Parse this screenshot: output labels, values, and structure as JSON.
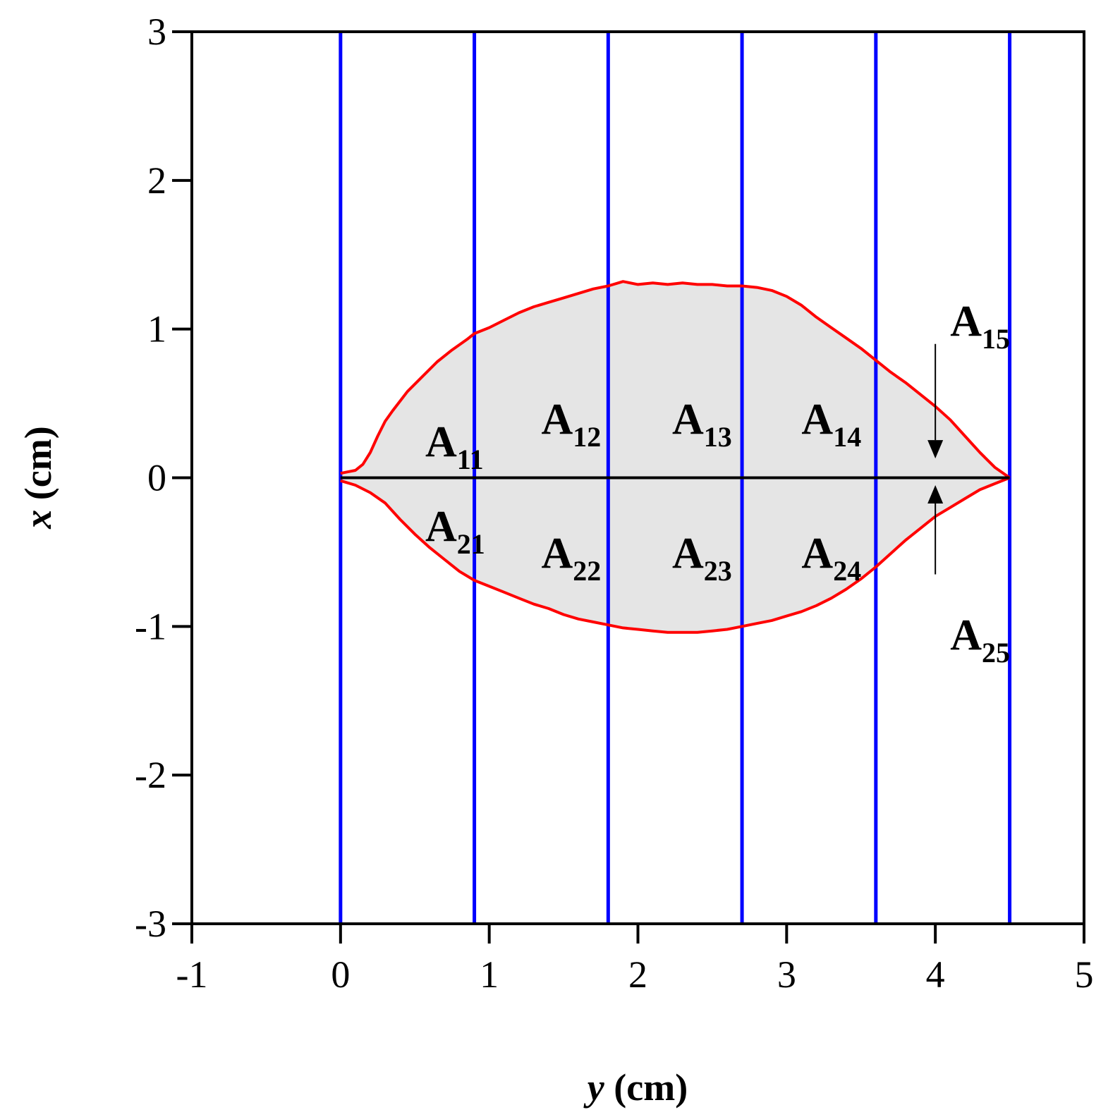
{
  "chart_data": {
    "type": "area",
    "title": "",
    "xlabel": {
      "var": "y",
      "unit": " (cm)"
    },
    "ylabel": {
      "var": "x",
      "unit": " (cm)"
    },
    "xlim": [
      -1,
      5
    ],
    "ylim": [
      -3,
      3
    ],
    "xticks": [
      "-1",
      "0",
      "1",
      "2",
      "3",
      "4",
      "5"
    ],
    "yticks": [
      "-3",
      "-2",
      "-1",
      "0",
      "1",
      "2",
      "3"
    ],
    "grid": false,
    "colors": {
      "boundary": "#ff0000",
      "fill": "#e5e5e5",
      "dividers": "#0000ff",
      "axis": "#000000"
    },
    "divider_lines_x": [
      0,
      0.9,
      1.8,
      2.7,
      3.6,
      4.5
    ],
    "centerline_x": [
      0,
      4.5
    ],
    "series": [
      {
        "values": [
          [
            0,
            0.03
          ],
          [
            0.05,
            0.04
          ],
          [
            0.1,
            0.05
          ],
          [
            0.15,
            0.09
          ],
          [
            0.2,
            0.17
          ],
          [
            0.25,
            0.28
          ],
          [
            0.3,
            0.38
          ],
          [
            0.35,
            0.45
          ],
          [
            0.45,
            0.58
          ],
          [
            0.55,
            0.68
          ],
          [
            0.65,
            0.78
          ],
          [
            0.75,
            0.86
          ],
          [
            0.85,
            0.93
          ],
          [
            0.9,
            0.97
          ],
          [
            1.0,
            1.01
          ],
          [
            1.1,
            1.06
          ],
          [
            1.2,
            1.11
          ],
          [
            1.3,
            1.15
          ],
          [
            1.4,
            1.18
          ],
          [
            1.5,
            1.21
          ],
          [
            1.6,
            1.24
          ],
          [
            1.7,
            1.27
          ],
          [
            1.8,
            1.29
          ],
          [
            1.9,
            1.32
          ],
          [
            2.0,
            1.3
          ],
          [
            2.1,
            1.31
          ],
          [
            2.2,
            1.3
          ],
          [
            2.3,
            1.31
          ],
          [
            2.4,
            1.3
          ],
          [
            2.5,
            1.3
          ],
          [
            2.6,
            1.29
          ],
          [
            2.7,
            1.29
          ],
          [
            2.8,
            1.28
          ],
          [
            2.9,
            1.26
          ],
          [
            3.0,
            1.22
          ],
          [
            3.1,
            1.16
          ],
          [
            3.2,
            1.08
          ],
          [
            3.3,
            1.01
          ],
          [
            3.4,
            0.94
          ],
          [
            3.5,
            0.87
          ],
          [
            3.6,
            0.79
          ],
          [
            3.7,
            0.71
          ],
          [
            3.8,
            0.64
          ],
          [
            3.9,
            0.56
          ],
          [
            4.0,
            0.48
          ],
          [
            4.1,
            0.39
          ],
          [
            4.2,
            0.28
          ],
          [
            4.3,
            0.17
          ],
          [
            4.4,
            0.07
          ],
          [
            4.5,
            0
          ]
        ]
      },
      {
        "values": [
          [
            0,
            -0.02
          ],
          [
            0.1,
            -0.05
          ],
          [
            0.2,
            -0.1
          ],
          [
            0.3,
            -0.17
          ],
          [
            0.4,
            -0.28
          ],
          [
            0.5,
            -0.38
          ],
          [
            0.6,
            -0.47
          ],
          [
            0.7,
            -0.55
          ],
          [
            0.8,
            -0.63
          ],
          [
            0.9,
            -0.69
          ],
          [
            1.0,
            -0.73
          ],
          [
            1.1,
            -0.77
          ],
          [
            1.2,
            -0.81
          ],
          [
            1.3,
            -0.85
          ],
          [
            1.4,
            -0.88
          ],
          [
            1.5,
            -0.92
          ],
          [
            1.6,
            -0.95
          ],
          [
            1.7,
            -0.97
          ],
          [
            1.8,
            -0.99
          ],
          [
            1.9,
            -1.01
          ],
          [
            2.0,
            -1.02
          ],
          [
            2.1,
            -1.03
          ],
          [
            2.2,
            -1.04
          ],
          [
            2.3,
            -1.04
          ],
          [
            2.4,
            -1.04
          ],
          [
            2.5,
            -1.03
          ],
          [
            2.6,
            -1.02
          ],
          [
            2.7,
            -1.0
          ],
          [
            2.8,
            -0.98
          ],
          [
            2.9,
            -0.96
          ],
          [
            3.0,
            -0.93
          ],
          [
            3.1,
            -0.9
          ],
          [
            3.2,
            -0.86
          ],
          [
            3.3,
            -0.81
          ],
          [
            3.4,
            -0.75
          ],
          [
            3.5,
            -0.68
          ],
          [
            3.6,
            -0.6
          ],
          [
            3.7,
            -0.51
          ],
          [
            3.8,
            -0.42
          ],
          [
            3.9,
            -0.34
          ],
          [
            4.0,
            -0.26
          ],
          [
            4.1,
            -0.2
          ],
          [
            4.2,
            -0.14
          ],
          [
            4.3,
            -0.08
          ],
          [
            4.4,
            -0.04
          ],
          [
            4.5,
            0
          ]
        ]
      }
    ],
    "region_labels": [
      {
        "main": "A",
        "sub": "11",
        "x": 0.57,
        "y": 0.25
      },
      {
        "main": "A",
        "sub": "12",
        "x": 1.35,
        "y": 0.4
      },
      {
        "main": "A",
        "sub": "13",
        "x": 2.23,
        "y": 0.4
      },
      {
        "main": "A",
        "sub": "14",
        "x": 3.1,
        "y": 0.4
      },
      {
        "main": "A",
        "sub": "15",
        "x": 4.1,
        "y": 1.06
      },
      {
        "main": "A",
        "sub": "21",
        "x": 0.57,
        "y": -0.32
      },
      {
        "main": "A",
        "sub": "22",
        "x": 1.35,
        "y": -0.5
      },
      {
        "main": "A",
        "sub": "23",
        "x": 2.23,
        "y": -0.5
      },
      {
        "main": "A",
        "sub": "24",
        "x": 3.1,
        "y": -0.5
      },
      {
        "main": "A",
        "sub": "25",
        "x": 4.1,
        "y": -1.05
      }
    ],
    "arrows": [
      {
        "x": 4.0,
        "y_from": 0.9,
        "y_to": 0.13
      },
      {
        "x": 4.0,
        "y_from": -0.65,
        "y_to": -0.05
      }
    ]
  }
}
